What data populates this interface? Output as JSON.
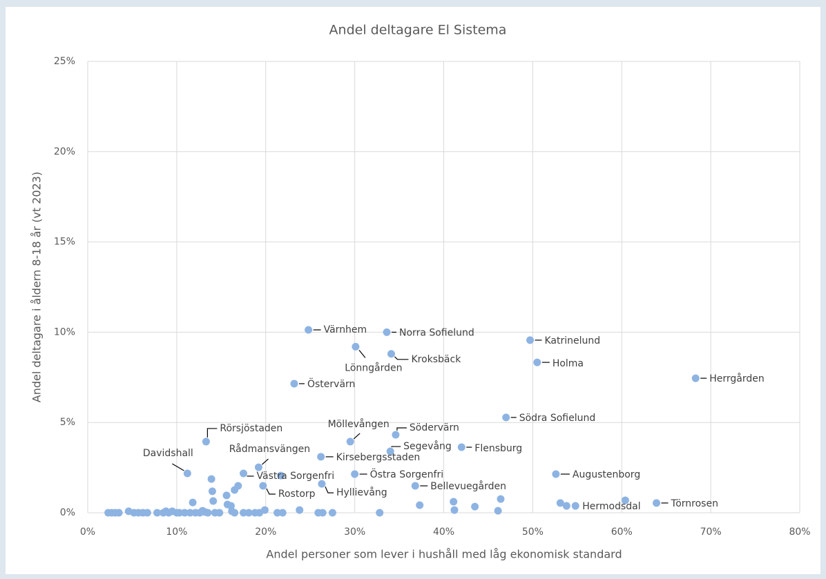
{
  "chart_data": {
    "type": "scatter",
    "title": "Andel deltagare El Sistema",
    "x_label": "Andel personer som lever i hushåll med låg ekonomisk standard",
    "y_label": "Andel deltagare i åldern 8-18 år (vt 2023)",
    "color": "#8db3e2",
    "grid": true,
    "xlim": [
      0,
      80
    ],
    "ylim": [
      0,
      25
    ],
    "xticks": [
      {
        "value": 0,
        "label": "0%"
      },
      {
        "value": 10,
        "label": "10%"
      },
      {
        "value": 20,
        "label": "20%"
      },
      {
        "value": 30,
        "label": "30%"
      },
      {
        "value": 40,
        "label": "40%"
      },
      {
        "value": 50,
        "label": "50%"
      },
      {
        "value": 60,
        "label": "60%"
      },
      {
        "value": 70,
        "label": "70%"
      },
      {
        "value": 80,
        "label": "80%"
      }
    ],
    "yticks": [
      {
        "value": 0,
        "label": "0%"
      },
      {
        "value": 5,
        "label": "5%"
      },
      {
        "value": 10,
        "label": "10%"
      },
      {
        "value": 15,
        "label": "15%"
      },
      {
        "value": 20,
        "label": "20%"
      },
      {
        "value": 25,
        "label": "25%"
      }
    ],
    "x": [
      24.8,
      33.6,
      30.1,
      34.1,
      49.7,
      50.5,
      68.3,
      23.2,
      47.0,
      13.3,
      29.5,
      34.6,
      34.0,
      42.0,
      26.2,
      19.2,
      11.2,
      17.5,
      30.0,
      52.6,
      19.7,
      26.3,
      36.8,
      54.8,
      63.9,
      2.3,
      2.7,
      3.1,
      3.5,
      4.6,
      5.2,
      5.7,
      6.2,
      6.7,
      7.8,
      8.5,
      8.8,
      9.1,
      9.5,
      10.0,
      10.3,
      10.9,
      11.5,
      11.8,
      12.1,
      12.6,
      12.9,
      13.2,
      13.5,
      13.9,
      14.0,
      14.1,
      14.3,
      14.8,
      15.6,
      15.7,
      16.1,
      16.5,
      16.9,
      16.2,
      16.5,
      17.5,
      18.1,
      18.8,
      19.3,
      19.9,
      21.3,
      21.9,
      21.7,
      23.8,
      25.9,
      26.4,
      27.5,
      32.8,
      37.3,
      41.1,
      41.2,
      43.5,
      46.1,
      46.4,
      53.1,
      53.8,
      60.4
    ],
    "values": [
      10.13,
      10.0,
      9.2,
      8.8,
      9.56,
      8.33,
      7.45,
      7.15,
      5.28,
      3.94,
      3.94,
      4.32,
      3.4,
      3.63,
      3.1,
      2.52,
      2.18,
      2.18,
      2.14,
      2.14,
      1.49,
      1.6,
      1.49,
      0.38,
      0.54,
      0,
      0,
      0,
      0,
      0.08,
      0,
      0,
      0,
      0,
      0,
      0,
      0.08,
      0,
      0.08,
      0,
      0,
      0,
      0,
      0.57,
      0,
      0,
      0.11,
      0.04,
      0,
      1.87,
      1.19,
      0.65,
      0,
      0,
      0.96,
      0.46,
      0.38,
      1.26,
      1.49,
      0.08,
      0,
      0,
      0,
      0,
      0,
      0.15,
      0,
      0,
      2.06,
      0.15,
      0,
      0,
      0,
      0,
      0.42,
      0.61,
      0.15,
      0.34,
      0.11,
      0.76,
      0.54,
      0.38,
      0.69
    ],
    "labels": [
      "Värnhem",
      "Norra Sofielund",
      "Lönngården",
      "Kroksbäck",
      "Katrinelund",
      "Holma",
      "Herrgården",
      "Östervärn",
      "Södra Sofielund",
      "Rörsjöstaden",
      "Möllevången",
      "Södervärn",
      "Segevång",
      "Flensburg",
      "Kirsebergsstaden",
      "Rådmansvängen",
      "Davidshall",
      "Västra Sorgenfri",
      "Östra Sorgenfri",
      "Augustenborg",
      "Rostorp",
      "Hyllievång",
      "Bellevuegården",
      "Hermodsdal",
      "Törnrosen"
    ]
  }
}
